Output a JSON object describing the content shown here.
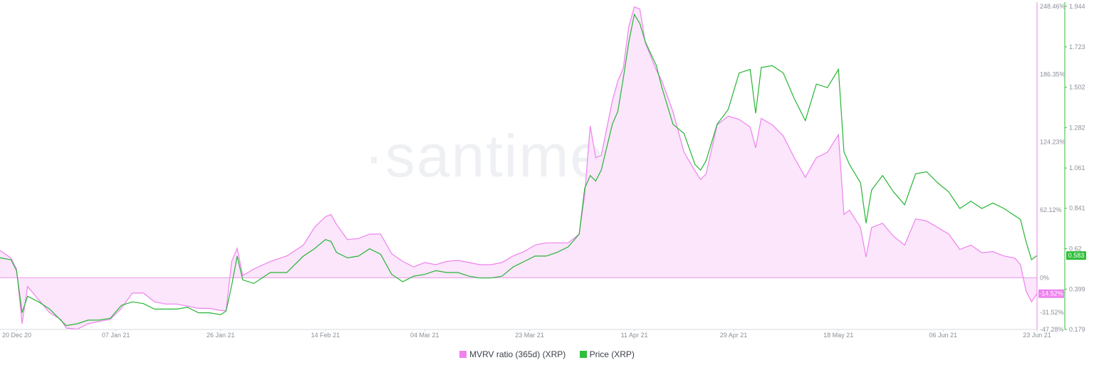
{
  "watermark": "·santiment·",
  "legend": {
    "items": [
      {
        "label": "MVRV ratio (365d) (XRP)",
        "color": "#ee82ee"
      },
      {
        "label": "Price (XRP)",
        "color": "#2fbf3a"
      }
    ]
  },
  "colors": {
    "mvrv_line": "#ee82ee",
    "mvrv_fill": "#fbe6fb",
    "price_line": "#26b535",
    "zero_line": "#e79ce7",
    "grid_axis": "#d6d9de"
  },
  "current": {
    "mvrv": "-14.52%",
    "price": "0.583"
  },
  "chart_data": {
    "type": "line",
    "x_ticks": [
      "20 Dec 20",
      "07 Jan 21",
      "26 Jan 21",
      "14 Feb 21",
      "04 Mar 21",
      "23 Mar 21",
      "11 Apr 21",
      "29 Apr 21",
      "18 May 21",
      "06 Jun 21",
      "23 Jun 21"
    ],
    "x_range": [
      "2020-12-17",
      "2021-06-23"
    ],
    "y_left": {
      "label": "",
      "ticks": [
        "248.46%",
        "186.35%",
        "124.23%",
        "62.12%",
        "0%",
        "-31.52%",
        "-47.28%"
      ],
      "range": [
        -47.28,
        248.46
      ],
      "unit": "%"
    },
    "y_right": {
      "label": "",
      "ticks": [
        "1.944",
        "1.723",
        "1.502",
        "1.282",
        "1.061",
        "0.841",
        "0.62",
        "0.399",
        "0.179"
      ],
      "range": [
        0.179,
        1.944
      ]
    },
    "grid": false,
    "series": [
      {
        "name": "MVRV ratio (365d) (XRP)",
        "axis": "left",
        "points": [
          [
            "2020-12-17",
            25
          ],
          [
            "2020-12-19",
            18
          ],
          [
            "2020-12-20",
            8
          ],
          [
            "2020-12-21",
            -42
          ],
          [
            "2020-12-22",
            -8
          ],
          [
            "2020-12-24",
            -20
          ],
          [
            "2020-12-26",
            -32
          ],
          [
            "2020-12-28",
            -38
          ],
          [
            "2020-12-29",
            -46
          ],
          [
            "2020-12-31",
            -47
          ],
          [
            "2021-01-02",
            -42
          ],
          [
            "2021-01-04",
            -40
          ],
          [
            "2021-01-06",
            -38
          ],
          [
            "2021-01-08",
            -28
          ],
          [
            "2021-01-10",
            -14
          ],
          [
            "2021-01-12",
            -14
          ],
          [
            "2021-01-14",
            -22
          ],
          [
            "2021-01-16",
            -24
          ],
          [
            "2021-01-18",
            -24
          ],
          [
            "2021-01-20",
            -26
          ],
          [
            "2021-01-22",
            -28
          ],
          [
            "2021-01-24",
            -28
          ],
          [
            "2021-01-26",
            -30
          ],
          [
            "2021-01-27",
            -30
          ],
          [
            "2021-01-28",
            15
          ],
          [
            "2021-01-29",
            27
          ],
          [
            "2021-01-30",
            2
          ],
          [
            "2021-02-01",
            8
          ],
          [
            "2021-02-04",
            15
          ],
          [
            "2021-02-07",
            20
          ],
          [
            "2021-02-10",
            30
          ],
          [
            "2021-02-12",
            46
          ],
          [
            "2021-02-14",
            56
          ],
          [
            "2021-02-15",
            58
          ],
          [
            "2021-02-16",
            49
          ],
          [
            "2021-02-18",
            35
          ],
          [
            "2021-02-20",
            36
          ],
          [
            "2021-02-22",
            40
          ],
          [
            "2021-02-24",
            40
          ],
          [
            "2021-02-26",
            22
          ],
          [
            "2021-02-28",
            15
          ],
          [
            "2021-03-02",
            10
          ],
          [
            "2021-03-04",
            14
          ],
          [
            "2021-03-06",
            12
          ],
          [
            "2021-03-08",
            15
          ],
          [
            "2021-03-10",
            16
          ],
          [
            "2021-03-12",
            14
          ],
          [
            "2021-03-14",
            12
          ],
          [
            "2021-03-16",
            12
          ],
          [
            "2021-03-18",
            14
          ],
          [
            "2021-03-20",
            20
          ],
          [
            "2021-03-22",
            24
          ],
          [
            "2021-03-24",
            30
          ],
          [
            "2021-03-26",
            32
          ],
          [
            "2021-03-28",
            32
          ],
          [
            "2021-03-30",
            32
          ],
          [
            "2021-04-01",
            40
          ],
          [
            "2021-04-02",
            76
          ],
          [
            "2021-04-03",
            139
          ],
          [
            "2021-04-04",
            110
          ],
          [
            "2021-04-05",
            112
          ],
          [
            "2021-04-07",
            162
          ],
          [
            "2021-04-08",
            180
          ],
          [
            "2021-04-09",
            192
          ],
          [
            "2021-04-10",
            230
          ],
          [
            "2021-04-11",
            248
          ],
          [
            "2021-04-12",
            246
          ],
          [
            "2021-04-13",
            215
          ],
          [
            "2021-04-15",
            190
          ],
          [
            "2021-04-16",
            180
          ],
          [
            "2021-04-18",
            152
          ],
          [
            "2021-04-20",
            115
          ],
          [
            "2021-04-22",
            98
          ],
          [
            "2021-04-23",
            90
          ],
          [
            "2021-04-24",
            95
          ],
          [
            "2021-04-26",
            140
          ],
          [
            "2021-04-28",
            148
          ],
          [
            "2021-04-30",
            145
          ],
          [
            "2021-05-02",
            138
          ],
          [
            "2021-05-03",
            119
          ],
          [
            "2021-05-04",
            146
          ],
          [
            "2021-05-06",
            140
          ],
          [
            "2021-05-08",
            130
          ],
          [
            "2021-05-10",
            110
          ],
          [
            "2021-05-12",
            92
          ],
          [
            "2021-05-14",
            110
          ],
          [
            "2021-05-16",
            115
          ],
          [
            "2021-05-18",
            131
          ],
          [
            "2021-05-19",
            58
          ],
          [
            "2021-05-20",
            62
          ],
          [
            "2021-05-22",
            46
          ],
          [
            "2021-05-23",
            19
          ],
          [
            "2021-05-24",
            46
          ],
          [
            "2021-05-26",
            50
          ],
          [
            "2021-05-28",
            38
          ],
          [
            "2021-05-30",
            30
          ],
          [
            "2021-06-01",
            54
          ],
          [
            "2021-06-03",
            52
          ],
          [
            "2021-06-05",
            46
          ],
          [
            "2021-06-07",
            40
          ],
          [
            "2021-06-09",
            26
          ],
          [
            "2021-06-11",
            30
          ],
          [
            "2021-06-13",
            23
          ],
          [
            "2021-06-15",
            24
          ],
          [
            "2021-06-17",
            20
          ],
          [
            "2021-06-19",
            18
          ],
          [
            "2021-06-20",
            12
          ],
          [
            "2021-06-21",
            -12
          ],
          [
            "2021-06-22",
            -22
          ],
          [
            "2021-06-23",
            -14.52
          ]
        ]
      },
      {
        "name": "Price (XRP)",
        "axis": "right",
        "points": [
          [
            "2020-12-17",
            0.57
          ],
          [
            "2020-12-19",
            0.56
          ],
          [
            "2020-12-20",
            0.5
          ],
          [
            "2020-12-21",
            0.27
          ],
          [
            "2020-12-22",
            0.36
          ],
          [
            "2020-12-24",
            0.33
          ],
          [
            "2020-12-26",
            0.29
          ],
          [
            "2020-12-28",
            0.23
          ],
          [
            "2020-12-29",
            0.2
          ],
          [
            "2020-12-31",
            0.21
          ],
          [
            "2021-01-02",
            0.23
          ],
          [
            "2021-01-04",
            0.23
          ],
          [
            "2021-01-06",
            0.24
          ],
          [
            "2021-01-08",
            0.31
          ],
          [
            "2021-01-10",
            0.33
          ],
          [
            "2021-01-12",
            0.32
          ],
          [
            "2021-01-14",
            0.29
          ],
          [
            "2021-01-16",
            0.29
          ],
          [
            "2021-01-18",
            0.29
          ],
          [
            "2021-01-20",
            0.3
          ],
          [
            "2021-01-22",
            0.27
          ],
          [
            "2021-01-24",
            0.27
          ],
          [
            "2021-01-26",
            0.26
          ],
          [
            "2021-01-27",
            0.28
          ],
          [
            "2021-01-28",
            0.42
          ],
          [
            "2021-01-29",
            0.58
          ],
          [
            "2021-01-30",
            0.45
          ],
          [
            "2021-02-01",
            0.43
          ],
          [
            "2021-02-04",
            0.49
          ],
          [
            "2021-02-07",
            0.49
          ],
          [
            "2021-02-10",
            0.58
          ],
          [
            "2021-02-12",
            0.62
          ],
          [
            "2021-02-14",
            0.67
          ],
          [
            "2021-02-15",
            0.66
          ],
          [
            "2021-02-16",
            0.6
          ],
          [
            "2021-02-18",
            0.57
          ],
          [
            "2021-02-20",
            0.58
          ],
          [
            "2021-02-22",
            0.62
          ],
          [
            "2021-02-24",
            0.59
          ],
          [
            "2021-02-26",
            0.48
          ],
          [
            "2021-02-28",
            0.44
          ],
          [
            "2021-03-02",
            0.47
          ],
          [
            "2021-03-04",
            0.48
          ],
          [
            "2021-03-06",
            0.5
          ],
          [
            "2021-03-08",
            0.49
          ],
          [
            "2021-03-10",
            0.49
          ],
          [
            "2021-03-12",
            0.47
          ],
          [
            "2021-03-14",
            0.46
          ],
          [
            "2021-03-16",
            0.46
          ],
          [
            "2021-03-18",
            0.47
          ],
          [
            "2021-03-20",
            0.52
          ],
          [
            "2021-03-22",
            0.55
          ],
          [
            "2021-03-24",
            0.58
          ],
          [
            "2021-03-26",
            0.58
          ],
          [
            "2021-03-28",
            0.6
          ],
          [
            "2021-03-30",
            0.63
          ],
          [
            "2021-04-01",
            0.7
          ],
          [
            "2021-04-02",
            0.95
          ],
          [
            "2021-04-03",
            1.02
          ],
          [
            "2021-04-04",
            0.99
          ],
          [
            "2021-04-05",
            1.05
          ],
          [
            "2021-04-07",
            1.3
          ],
          [
            "2021-04-08",
            1.37
          ],
          [
            "2021-04-09",
            1.55
          ],
          [
            "2021-04-10",
            1.75
          ],
          [
            "2021-04-11",
            1.9
          ],
          [
            "2021-04-12",
            1.85
          ],
          [
            "2021-04-13",
            1.75
          ],
          [
            "2021-04-15",
            1.62
          ],
          [
            "2021-04-16",
            1.5
          ],
          [
            "2021-04-18",
            1.3
          ],
          [
            "2021-04-20",
            1.25
          ],
          [
            "2021-04-22",
            1.08
          ],
          [
            "2021-04-23",
            1.05
          ],
          [
            "2021-04-24",
            1.1
          ],
          [
            "2021-04-26",
            1.3
          ],
          [
            "2021-04-28",
            1.38
          ],
          [
            "2021-04-30",
            1.58
          ],
          [
            "2021-05-02",
            1.6
          ],
          [
            "2021-05-03",
            1.36
          ],
          [
            "2021-05-04",
            1.61
          ],
          [
            "2021-05-06",
            1.62
          ],
          [
            "2021-05-08",
            1.58
          ],
          [
            "2021-05-10",
            1.44
          ],
          [
            "2021-05-12",
            1.32
          ],
          [
            "2021-05-14",
            1.52
          ],
          [
            "2021-05-16",
            1.5
          ],
          [
            "2021-05-18",
            1.6
          ],
          [
            "2021-05-19",
            1.15
          ],
          [
            "2021-05-20",
            1.08
          ],
          [
            "2021-05-22",
            0.98
          ],
          [
            "2021-05-23",
            0.76
          ],
          [
            "2021-05-24",
            0.94
          ],
          [
            "2021-05-26",
            1.02
          ],
          [
            "2021-05-28",
            0.93
          ],
          [
            "2021-05-30",
            0.86
          ],
          [
            "2021-06-01",
            1.03
          ],
          [
            "2021-06-03",
            1.04
          ],
          [
            "2021-06-05",
            0.98
          ],
          [
            "2021-06-07",
            0.93
          ],
          [
            "2021-06-09",
            0.84
          ],
          [
            "2021-06-11",
            0.88
          ],
          [
            "2021-06-13",
            0.84
          ],
          [
            "2021-06-15",
            0.87
          ],
          [
            "2021-06-17",
            0.84
          ],
          [
            "2021-06-19",
            0.8
          ],
          [
            "2021-06-20",
            0.78
          ],
          [
            "2021-06-21",
            0.66
          ],
          [
            "2021-06-22",
            0.56
          ],
          [
            "2021-06-23",
            0.583
          ]
        ]
      }
    ],
    "legend_position": "bottom-center"
  }
}
